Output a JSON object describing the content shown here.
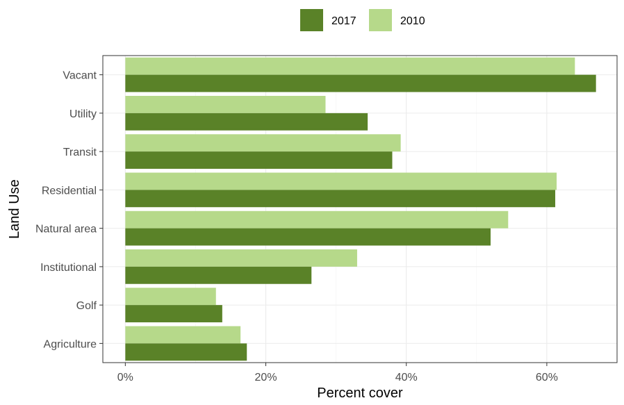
{
  "chart_data": {
    "type": "bar",
    "orientation": "horizontal",
    "title": "",
    "xlabel": "Percent cover",
    "ylabel": "Land Use",
    "categories": [
      "Vacant",
      "Utility",
      "Transit",
      "Residential",
      "Natural area",
      "Institutional",
      "Golf",
      "Agriculture"
    ],
    "series": [
      {
        "name": "2017",
        "color": "#5a8228",
        "values": [
          67,
          34.5,
          38,
          61.2,
          52,
          26.5,
          13.8,
          17.3
        ]
      },
      {
        "name": "2010",
        "color": "#b6d98a",
        "values": [
          64,
          28.5,
          39.2,
          61.4,
          54.5,
          33,
          12.9,
          16.4
        ]
      }
    ],
    "xlim": [
      -3.2,
      70
    ],
    "xticks": [
      0,
      20,
      40,
      60
    ],
    "xtick_labels": [
      "0%",
      "20%",
      "40%",
      "60%"
    ],
    "legend_position": "top",
    "grid": true,
    "panel_border": true
  }
}
